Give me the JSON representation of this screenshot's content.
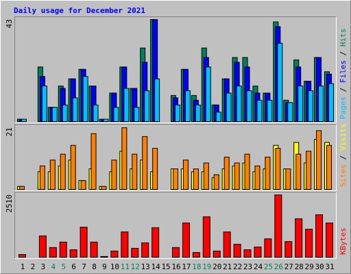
{
  "title": "Daily usage for December 2021",
  "title_color": "#0000ff",
  "legend_separator": "/",
  "chart_data": [
    {
      "type": "bar",
      "ylim": [
        0,
        43
      ],
      "yticks": [
        43
      ],
      "series": [
        {
          "name": "Hits",
          "color": "#00805c",
          "values": [
            1,
            0,
            23,
            6,
            15,
            18,
            22,
            15,
            1,
            12,
            23,
            14,
            31,
            43,
            0,
            11,
            22,
            11,
            31,
            7,
            18,
            27,
            27,
            15,
            12,
            42,
            9,
            26,
            17,
            27,
            21
          ]
        },
        {
          "name": "Files",
          "color": "#0000ff",
          "values": [
            1,
            0,
            19,
            6,
            14,
            18,
            22,
            15,
            1,
            12,
            23,
            14,
            25,
            43,
            0,
            10,
            22,
            9,
            27,
            7,
            18,
            25,
            23,
            12,
            12,
            40,
            8,
            23,
            17,
            27,
            20
          ]
        },
        {
          "name": "Pages",
          "color": "#00c0ff",
          "values": [
            1,
            0,
            15,
            6,
            7,
            10,
            19,
            7,
            1,
            6,
            14,
            6,
            13,
            18,
            0,
            7,
            13,
            7,
            23,
            4,
            12,
            15,
            13,
            9,
            9,
            33,
            8,
            15,
            13,
            15,
            16
          ]
        }
      ]
    },
    {
      "type": "bar",
      "ylim": [
        0,
        21
      ],
      "yticks": [
        21
      ],
      "series": [
        {
          "name": "Visits",
          "color": "#ffff00",
          "values": [
            1,
            0,
            6,
            6,
            8,
            10,
            3,
            7,
            1,
            6,
            13,
            7,
            10,
            6,
            0,
            7,
            7,
            6,
            6,
            4,
            7,
            8,
            9,
            6,
            7,
            15,
            7,
            16,
            9,
            17,
            16
          ]
        },
        {
          "name": "Sites",
          "color": "#ff8000",
          "values": [
            1,
            0,
            8,
            10,
            12,
            15,
            3,
            19,
            1,
            10,
            21,
            12,
            18,
            14,
            0,
            7,
            10,
            7,
            9,
            5,
            11,
            9,
            12,
            8,
            11,
            14,
            7,
            12,
            13,
            20,
            15
          ]
        }
      ]
    },
    {
      "type": "bar",
      "ylim": [
        0,
        2510
      ],
      "yticks": [
        2510
      ],
      "categories": [
        "1",
        "2",
        "3",
        "4",
        "5",
        "6",
        "7",
        "8",
        "9",
        "10",
        "11",
        "12",
        "13",
        "14",
        "15",
        "16",
        "17",
        "18",
        "19",
        "20",
        "21",
        "22",
        "23",
        "24",
        "25",
        "26",
        "27",
        "28",
        "29",
        "30",
        "31"
      ],
      "category_colors": [
        "#000000",
        "#000000",
        "#000000",
        "#00805c",
        "#00805c",
        "#000000",
        "#000000",
        "#000000",
        "#000000",
        "#000000",
        "#00805c",
        "#00805c",
        "#000000",
        "#000000",
        "#000000",
        "#000000",
        "#000000",
        "#00805c",
        "#00805c",
        "#000000",
        "#000000",
        "#000000",
        "#000000",
        "#000000",
        "#00805c",
        "#00805c",
        "#000000",
        "#000000",
        "#000000",
        "#000000",
        "#000000"
      ],
      "series": [
        {
          "name": "KBytes",
          "color": "#ff0000",
          "values": [
            110,
            0,
            860,
            390,
            610,
            300,
            1210,
            610,
            30,
            250,
            1020,
            360,
            580,
            1190,
            0,
            390,
            1380,
            190,
            1630,
            250,
            1020,
            520,
            300,
            410,
            740,
            2510,
            630,
            1550,
            1130,
            1710,
            1380
          ]
        }
      ]
    }
  ]
}
